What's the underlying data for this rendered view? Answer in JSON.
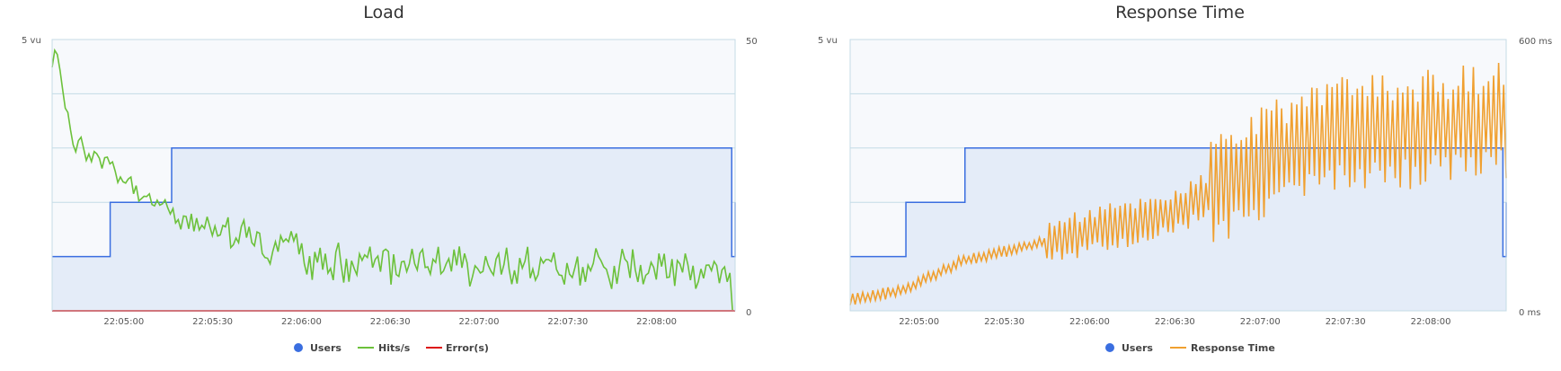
{
  "colors": {
    "users": "#3a6ee0",
    "users_fill": "#e4ecf8",
    "hits": "#6cc13b",
    "errors": "#dd1111",
    "response": "#f0a030",
    "plot_bg": "#f7f9fc",
    "grid": "#c4dbe6"
  },
  "chart_data": [
    {
      "type": "line",
      "title": "Load",
      "y_left": {
        "label": "5 vu",
        "range": [
          0,
          5
        ]
      },
      "y_right": {
        "top": "50",
        "bottom": "0",
        "range": [
          0,
          50
        ]
      },
      "x_ticks": [
        "22:05:00",
        "22:05:30",
        "22:06:00",
        "22:06:30",
        "22:07:00",
        "22:07:30",
        "22:08:00"
      ],
      "legend": [
        "Users",
        "Hits/s",
        "Error(s)"
      ],
      "grid": true,
      "series": [
        {
          "name": "Users",
          "kind": "area",
          "steps": [
            [
              0,
              1
            ],
            [
              0.085,
              2
            ],
            [
              0.175,
              3
            ],
            [
              0.993,
              3
            ],
            [
              0.995,
              1
            ],
            [
              1,
              2
            ]
          ]
        },
        {
          "name": "Hits/s",
          "kind": "line",
          "shape": "decay",
          "start": 46,
          "early": 31,
          "mid": 16,
          "late": 9,
          "end": 7,
          "noise": 4
        },
        {
          "name": "Error(s)",
          "kind": "line",
          "values": [
            0,
            0
          ]
        }
      ]
    },
    {
      "type": "line",
      "title": "Response Time",
      "y_left": {
        "label": "5 vu",
        "range": [
          0,
          5
        ]
      },
      "y_right": {
        "top": "600 ms",
        "bottom": "0 ms",
        "range": [
          0,
          600
        ]
      },
      "x_ticks": [
        "22:05:00",
        "22:05:30",
        "22:06:00",
        "22:06:30",
        "22:07:00",
        "22:07:30",
        "22:08:00"
      ],
      "legend": [
        "Users",
        "Response Time"
      ],
      "grid": true,
      "series": [
        {
          "name": "Users",
          "kind": "area",
          "steps": [
            [
              0,
              1
            ],
            [
              0.085,
              2
            ],
            [
              0.175,
              3
            ],
            [
              0.993,
              3
            ],
            [
              0.995,
              1
            ],
            [
              1,
              2
            ]
          ]
        },
        {
          "name": "Response Time",
          "kind": "line",
          "shape": "rise",
          "start": 25,
          "step_up": 110,
          "mid": 220,
          "late": 380,
          "end": 420,
          "noise": 120
        }
      ]
    }
  ]
}
